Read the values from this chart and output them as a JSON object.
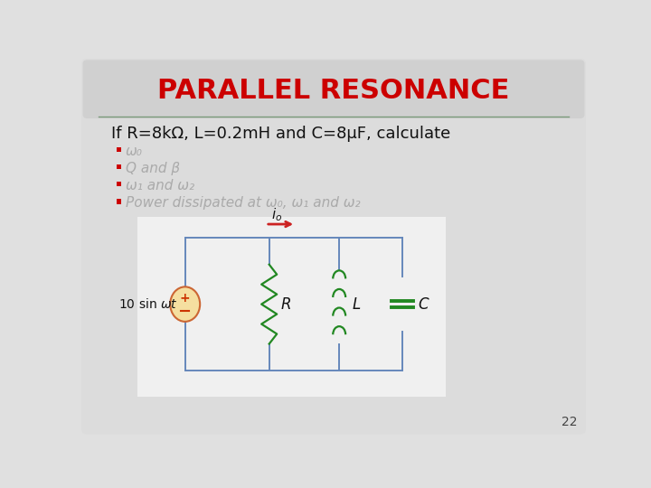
{
  "title": "PARALLEL RESONANCE",
  "title_color": "#cc0000",
  "title_fontsize": 22,
  "slide_bg": "#e0e0e0",
  "title_bar_color": "#d4d4d4",
  "sep_line_color": "#7a9a7a",
  "problem_text": "If R=8kΩ, L=0.2mH and C=8μF, calculate",
  "problem_fontsize": 13,
  "bullet_color": "#cc0000",
  "bullet_items": [
    "ω₀",
    "Q and β",
    "ω₁ and ω₂",
    "Power dissipated at ω₀, ω₁ and ω₂"
  ],
  "bullet_fontsize": 11,
  "circuit_bg": "#f0f0f0",
  "circuit_border": "#6688bb",
  "wire_color": "#6688bb",
  "component_color": "#228822",
  "source_fill": "#f5dfa0",
  "page_number": "22",
  "page_number_fontsize": 10
}
